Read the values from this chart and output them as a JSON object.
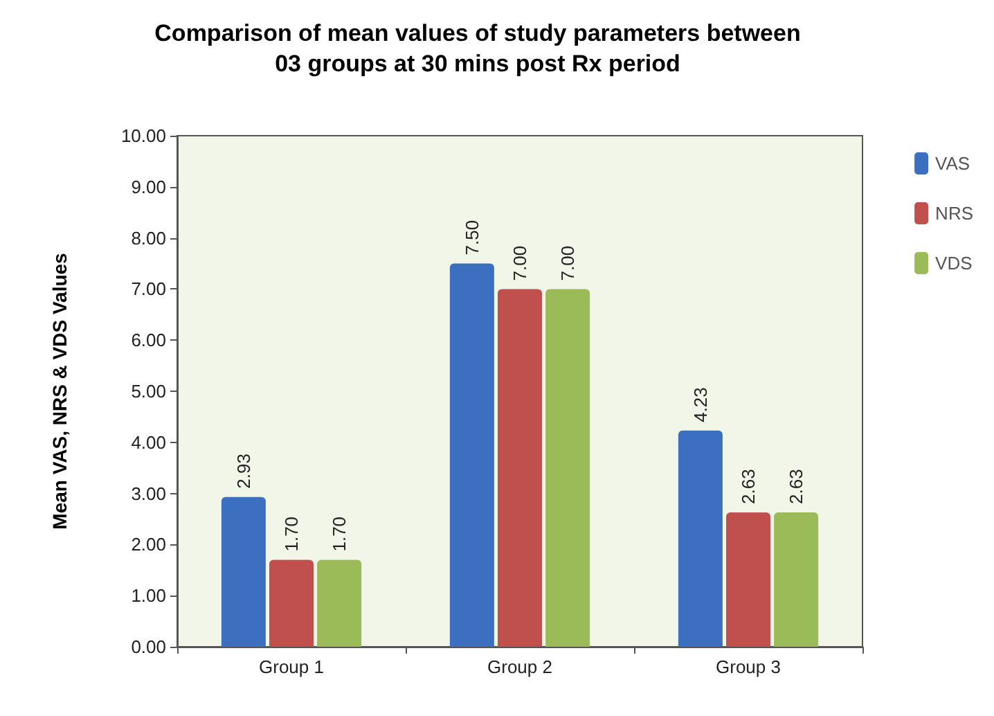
{
  "chart_data": {
    "type": "bar",
    "title": "Comparison of mean values of study parameters between\n03 groups at 30 mins post Rx period",
    "ylabel": "Mean VAS, NRS & VDS Values",
    "categories": [
      "Group 1",
      "Group 2",
      "Group 3"
    ],
    "series": [
      {
        "name": "VAS",
        "color": "#3c6fc0",
        "values": [
          2.93,
          7.5,
          4.23
        ],
        "value_labels": [
          "2.93",
          "7.50",
          "4.23"
        ]
      },
      {
        "name": "NRS",
        "color": "#c0504d",
        "values": [
          1.7,
          7.0,
          2.63
        ],
        "value_labels": [
          "1.70",
          "7.00",
          "2.63"
        ]
      },
      {
        "name": "VDS",
        "color": "#9bbb59",
        "values": [
          1.7,
          7.0,
          2.63
        ],
        "value_labels": [
          "1.70",
          "7.00",
          "2.63"
        ]
      }
    ],
    "ylim": [
      0,
      10
    ],
    "yticks": [
      {
        "value": 0,
        "label": "0.00"
      },
      {
        "value": 1,
        "label": "1.00"
      },
      {
        "value": 2,
        "label": "2.00"
      },
      {
        "value": 3,
        "label": "3.00"
      },
      {
        "value": 4,
        "label": "4.00"
      },
      {
        "value": 5,
        "label": "5.00"
      },
      {
        "value": 6,
        "label": "6.00"
      },
      {
        "value": 7,
        "label": "7.00"
      },
      {
        "value": 8,
        "label": "8.00"
      },
      {
        "value": 9,
        "label": "9.00"
      },
      {
        "value": 10,
        "label": "10.00"
      }
    ],
    "legend": "top right"
  }
}
